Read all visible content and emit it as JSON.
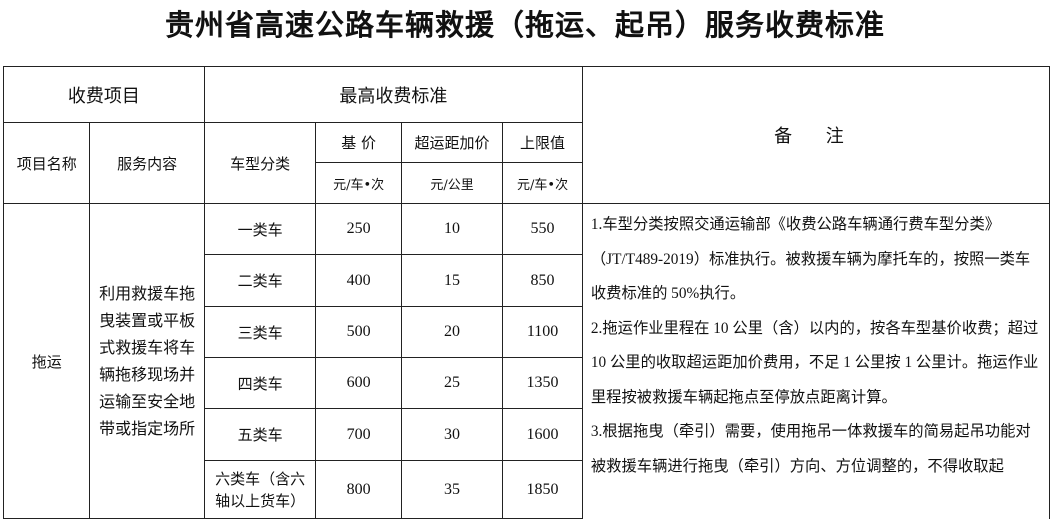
{
  "title": "贵州省高速公路车辆救援（拖运、起吊）服务收费标准",
  "header": {
    "fee_item": "收费项目",
    "max_standard": "最高收费标准",
    "remarks": "备 注",
    "item_name": "项目名称",
    "service_content": "服务内容",
    "vehicle_class": "车型分类",
    "base_price": "基 价",
    "extra_distance": "超运距加价",
    "upper_limit": "上限值",
    "base_unit": "元/车•次",
    "extra_unit": "元/公里",
    "limit_unit": "元/车•次"
  },
  "body": {
    "item_name": "拖运",
    "service_content": "利用救援车拖曳装置或平板式救援车将车辆拖移现场并运输至安全地带或指定场所",
    "rows": [
      {
        "class": "一类车",
        "base": "250",
        "extra": "10",
        "limit": "550"
      },
      {
        "class": "二类车",
        "base": "400",
        "extra": "15",
        "limit": "850"
      },
      {
        "class": "三类车",
        "base": "500",
        "extra": "20",
        "limit": "1100"
      },
      {
        "class": "四类车",
        "base": "600",
        "extra": "25",
        "limit": "1350"
      },
      {
        "class": "五类车",
        "base": "700",
        "extra": "30",
        "limit": "1600"
      },
      {
        "class": "六类车（含六轴以上货车）",
        "base": "800",
        "extra": "35",
        "limit": "1850"
      }
    ],
    "remarks": [
      "1.车型分类按照交通运输部《收费公路车辆通行费车型分类》（JT/T489-2019）标准执行。被救援车辆为摩托车的，按照一类车收费标准的 50%执行。",
      "2.拖运作业里程在 10 公里（含）以内的，按各车型基价收费；超过 10 公里的收取超运距加价费用，不足 1 公里按 1 公里计。拖运作业里程按被救援车辆起拖点至停放点距离计算。",
      "3.根据拖曳（牵引）需要，使用拖吊一体救援车的简易起吊功能对被救援车辆进行拖曳（牵引）方向、方位调整的，不得收取起"
    ]
  }
}
